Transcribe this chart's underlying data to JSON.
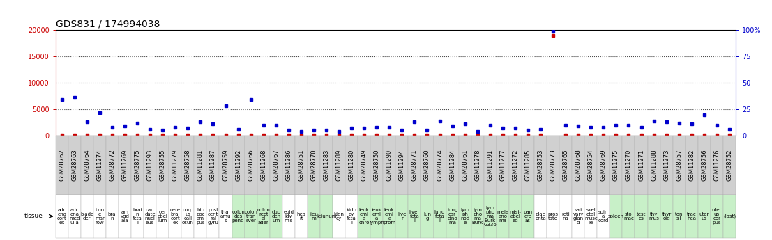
{
  "title": "GDS831 / 174994038",
  "samples": [
    "GSM28762",
    "GSM28763",
    "GSM28764",
    "GSM11274",
    "GSM28772",
    "GSM11269",
    "GSM28775",
    "GSM11293",
    "GSM28755",
    "GSM11279",
    "GSM28758",
    "GSM11281",
    "GSM11287",
    "GSM28759",
    "GSM11292",
    "GSM28766",
    "GSM11268",
    "GSM28767",
    "GSM11286",
    "GSM28751",
    "GSM28770",
    "GSM11283",
    "GSM11289",
    "GSM11280",
    "GSM28749",
    "GSM28750",
    "GSM11290",
    "GSM11294",
    "GSM28771",
    "GSM28760",
    "GSM28774",
    "GSM11284",
    "GSM28761",
    "GSM11278",
    "GSM11291",
    "GSM11277",
    "GSM11272",
    "GSM11285",
    "GSM28753",
    "GSM28773",
    "GSM28765",
    "GSM28768",
    "GSM28754",
    "GSM28769",
    "GSM11275",
    "GSM11270",
    "GSM11271",
    "GSM11288",
    "GSM11273",
    "GSM28757",
    "GSM11282",
    "GSM28756",
    "GSM11276",
    "GSM28752"
  ],
  "tissues": [
    "adr\nena\ncort\nex",
    "adr\nena\nmed\nulla",
    "blade\nder",
    "bon\ne\nmar\nrow",
    "brai\nn",
    "am\nygd\nala",
    "brai\nn\nfeta\nl",
    "cau\ndate\nnucl\neus",
    "cer\nebel\nlum",
    "cere\nbral\ncort\nex",
    "corp\nus\ncall\nosun",
    "hip\npoc\nam\npus",
    "post\ncent\nral\ngyru",
    "thal\namu\ns",
    "colon\ndes\npend",
    "colon\ntran\nsver",
    "colon\nrect\nal\nader",
    "duo\nden\num",
    "epid\nidy\nmis",
    "hea\nrt",
    "lieu\nm",
    "jejunum",
    "kidn\ney",
    "kidn\ney\nfeta\nl",
    "leuk\nemi\na\nchro",
    "leuk\nemi\na\nlymph",
    "leuk\nemi\na\nprom",
    "live\nr",
    "liver\nfeta\nl",
    "lun\ng",
    "lung\nfeta\nl",
    "lung\ncar\ncino\nma",
    "lym\nph\nnod\ne",
    "lym\npho\nma\nBurk",
    "lym\npho\nma\nBurk\nG336",
    "mela\nano\nma",
    "misi-\nabel\ned",
    "pan\ncre\nas",
    "plac\nenta",
    "pros\ntate",
    "reti\nna",
    "sali\nvary\nglan\nd",
    "skel\netal\nmusc\nle",
    "spin\nal\ncord",
    "spleen",
    "sto\nmac",
    "test\nes",
    "thy\nmus",
    "thyr\noid",
    "ton\nsil",
    "trac\nhea",
    "uter\nus",
    "uter\nus\ncor\npus",
    "(last)"
  ],
  "tissue_colors": [
    "white",
    "white",
    "white",
    "white",
    "white",
    "white",
    "white",
    "white",
    "white",
    "white",
    "white",
    "white",
    "white",
    "white",
    "#c8f0c8",
    "#c8f0c8",
    "#c8f0c8",
    "#c8f0c8",
    "white",
    "white",
    "#c8f0c8",
    "#c8f0c8",
    "white",
    "white",
    "#c8f0c8",
    "#c8f0c8",
    "#c8f0c8",
    "#c8f0c8",
    "#c8f0c8",
    "#c8f0c8",
    "#c8f0c8",
    "#c8f0c8",
    "#c8f0c8",
    "#c8f0c8",
    "#c8f0c8",
    "#c8f0c8",
    "#c8f0c8",
    "#c8f0c8",
    "white",
    "white",
    "white",
    "white",
    "white",
    "white",
    "#c8f0c8",
    "#c8f0c8",
    "#c8f0c8",
    "#c8f0c8",
    "#c8f0c8",
    "#c8f0c8",
    "#c8f0c8",
    "#c8f0c8",
    "#c8f0c8",
    "#c8f0c8"
  ],
  "counts": [
    100,
    100,
    100,
    100,
    100,
    100,
    100,
    100,
    100,
    100,
    100,
    100,
    100,
    100,
    100,
    100,
    100,
    100,
    100,
    100,
    100,
    100,
    100,
    100,
    100,
    100,
    100,
    100,
    100,
    100,
    100,
    100,
    100,
    100,
    100,
    100,
    100,
    100,
    100,
    19000,
    100,
    100,
    100,
    100,
    100,
    100,
    100,
    100,
    100,
    100,
    100,
    100,
    100,
    100
  ],
  "percentile": [
    34,
    36,
    13,
    22,
    8,
    9,
    12,
    6,
    5,
    8,
    7,
    13,
    11,
    28,
    6,
    34,
    10,
    10,
    5,
    4,
    5,
    5,
    4,
    7,
    7,
    8,
    8,
    5,
    13,
    5,
    14,
    9,
    11,
    4,
    10,
    7,
    7,
    5,
    6,
    99,
    10,
    9,
    8,
    8,
    10,
    10,
    8,
    14,
    13,
    12,
    11,
    20,
    10,
    6
  ],
  "left_ylim": [
    0,
    20000
  ],
  "right_ylim": [
    0,
    100
  ],
  "left_yticks": [
    0,
    5000,
    10000,
    15000,
    20000
  ],
  "right_yticks": [
    0,
    25,
    50,
    75,
    100
  ],
  "left_ytick_labels": [
    "0",
    "5000",
    "10000",
    "15000",
    "20000"
  ],
  "right_ytick_labels": [
    "0",
    "25",
    "50",
    "75",
    "100%"
  ],
  "left_color": "#cc0000",
  "right_color": "#0000cc",
  "title_fontsize": 10,
  "tick_fontsize": 7,
  "tissue_fontsize": 5.0,
  "gsm_fontsize": 6.0,
  "gridline_color": "black",
  "gridline_style": "dotted",
  "gridline_alpha": 0.7
}
